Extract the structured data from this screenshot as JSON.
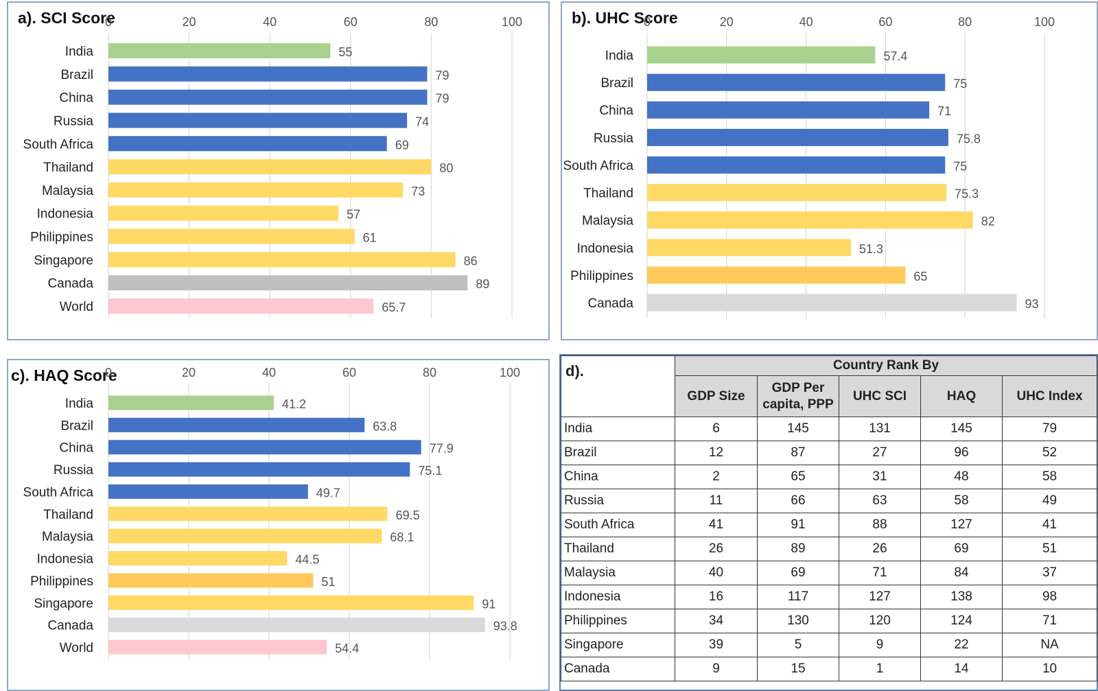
{
  "chart_data": [
    {
      "id": "sci",
      "type": "bar",
      "orientation": "horizontal",
      "title": "a). SCI Score",
      "xlim": [
        0,
        100
      ],
      "ticks": [
        "0",
        "20",
        "40",
        "60",
        "80",
        "100"
      ],
      "tick_values": [
        0,
        20,
        40,
        60,
        80,
        100
      ],
      "categories": [
        "India",
        "Brazil",
        "China",
        "Russia",
        "South Africa",
        "Thailand",
        "Malaysia",
        "Indonesia",
        "Philippines",
        "Singapore",
        "Canada",
        "World"
      ],
      "values": [
        55,
        79,
        79,
        74,
        69,
        80,
        73,
        57,
        61,
        86,
        89,
        65.7
      ],
      "labels": [
        "55",
        "79",
        "79",
        "74",
        "69",
        "80",
        "73",
        "57",
        "61",
        "86",
        "89",
        "65.7"
      ],
      "colors": [
        "#a9d18e",
        "#4472c4",
        "#4472c4",
        "#4472c4",
        "#4472c4",
        "#ffd966",
        "#ffd966",
        "#ffd966",
        "#ffd966",
        "#ffd966",
        "#bfbfbf",
        "#ffc7ce"
      ]
    },
    {
      "id": "uhc",
      "type": "bar",
      "orientation": "horizontal",
      "title": "b). UHC Score",
      "xlim": [
        0,
        100
      ],
      "ticks": [
        "0",
        "20",
        "40",
        "60",
        "80",
        "100"
      ],
      "tick_values": [
        0,
        20,
        40,
        60,
        80,
        100
      ],
      "categories": [
        "India",
        "Brazil",
        "China",
        "Russia",
        "South Africa",
        "Thailand",
        "Malaysia",
        "Indonesia",
        "Philippines",
        "Canada"
      ],
      "values": [
        57.4,
        75,
        71,
        75.8,
        75,
        75.3,
        82,
        51.3,
        65,
        93
      ],
      "labels": [
        "57.4",
        "75",
        "71",
        "75.8",
        "75",
        "75.3",
        "82",
        "51.3",
        "65",
        "93"
      ],
      "colors": [
        "#a9d18e",
        "#4472c4",
        "#4472c4",
        "#4472c4",
        "#4472c4",
        "#ffd966",
        "#ffd966",
        "#ffd966",
        "#ffc95c",
        "#d9d9d9"
      ]
    },
    {
      "id": "haq",
      "type": "bar",
      "orientation": "horizontal",
      "title": "c). HAQ Score",
      "xlim": [
        0,
        100
      ],
      "ticks": [
        "0",
        "20",
        "40",
        "60",
        "80",
        "100"
      ],
      "tick_values": [
        0,
        20,
        40,
        60,
        80,
        100
      ],
      "categories": [
        "India",
        "Brazil",
        "China",
        "Russia",
        "South Africa",
        "Thailand",
        "Malaysia",
        "Indonesia",
        "Philippines",
        "Singapore",
        "Canada",
        "World"
      ],
      "values": [
        41.2,
        63.8,
        77.9,
        75.1,
        49.7,
        69.5,
        68.1,
        44.5,
        51,
        91,
        93.8,
        54.4
      ],
      "labels": [
        "41.2",
        "63.8",
        "77.9",
        "75.1",
        "49.7",
        "69.5",
        "68.1",
        "44.5",
        "51",
        "91",
        "93.8",
        "54.4"
      ],
      "colors": [
        "#a9d18e",
        "#4472c4",
        "#4472c4",
        "#4472c4",
        "#4472c4",
        "#ffd966",
        "#ffd966",
        "#ffd966",
        "#ffc95c",
        "#ffd966",
        "#d9d9d9",
        "#ffc7ce"
      ]
    },
    {
      "id": "rank",
      "type": "table",
      "title": "d).",
      "group_header": "Country Rank By",
      "columns": [
        "GDP Size",
        "GDP Per capita, PPP",
        "UHC SCI",
        "HAQ",
        "UHC Index"
      ],
      "rows": [
        {
          "country": "India",
          "cells": [
            "6",
            "145",
            "131",
            "145",
            "79"
          ]
        },
        {
          "country": "Brazil",
          "cells": [
            "12",
            "87",
            "27",
            "96",
            "52"
          ]
        },
        {
          "country": "China",
          "cells": [
            "2",
            "65",
            "31",
            "48",
            "58"
          ]
        },
        {
          "country": "Russia",
          "cells": [
            "11",
            "66",
            "63",
            "58",
            "49"
          ]
        },
        {
          "country": "South Africa",
          "cells": [
            "41",
            "91",
            "88",
            "127",
            "41"
          ]
        },
        {
          "country": "Thailand",
          "cells": [
            "26",
            "89",
            "26",
            "69",
            "51"
          ]
        },
        {
          "country": "Malaysia",
          "cells": [
            "40",
            "69",
            "71",
            "84",
            "37"
          ]
        },
        {
          "country": "Indonesia",
          "cells": [
            "16",
            "117",
            "127",
            "138",
            "98"
          ]
        },
        {
          "country": "Philippines",
          "cells": [
            "34",
            "130",
            "120",
            "124",
            "71"
          ]
        },
        {
          "country": "Singapore",
          "cells": [
            "39",
            "5",
            "9",
            "22",
            "NA"
          ]
        },
        {
          "country": "Canada",
          "cells": [
            "9",
            "15",
            "1",
            "14",
            "10"
          ]
        }
      ]
    }
  ]
}
